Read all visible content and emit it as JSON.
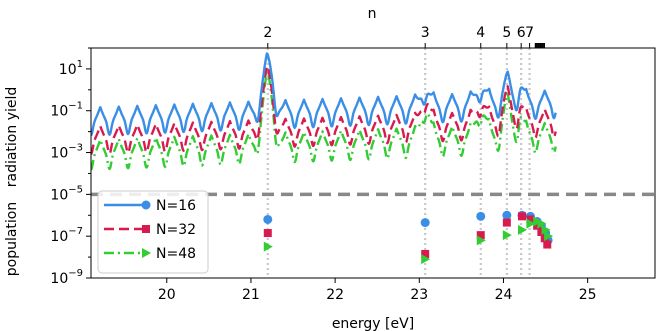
{
  "chart_data": {
    "type": "line",
    "xlabel": "energy [eV]",
    "top_xlabel": "n",
    "ylabel_upper": "radiation yield",
    "ylabel_lower": "population",
    "xlim": [
      19.1,
      25.8
    ],
    "ylim_log10": [
      -9,
      2
    ],
    "y_scale": "log",
    "grid": false,
    "legend_position": "lower-left",
    "x_ticks": [
      20,
      21,
      22,
      23,
      24,
      25
    ],
    "y_ticks": [
      {
        "exp": 1,
        "label": "10",
        "sup": "1"
      },
      {
        "exp": -1,
        "label": "10",
        "sup": "−1"
      },
      {
        "exp": -3,
        "label": "10",
        "sup": "−3"
      },
      {
        "exp": -5,
        "label": "10",
        "sup": "−5"
      },
      {
        "exp": -7,
        "label": "10",
        "sup": "−7"
      },
      {
        "exp": -9,
        "label": "10",
        "sup": "−9"
      }
    ],
    "threshold_log10": -5,
    "threshold_color": "#888888",
    "resonances": [
      {
        "n": "2",
        "energy": 21.2
      },
      {
        "n": "3",
        "energy": 23.07
      },
      {
        "n": "4",
        "energy": 23.73
      },
      {
        "n": "5",
        "energy": 24.04
      },
      {
        "n": "6",
        "energy": 24.21
      },
      {
        "n": "7",
        "energy": 24.31
      }
    ],
    "series": [
      {
        "name": "N=16",
        "color": "#3a8ee6",
        "line_style": "solid",
        "marker": "circle",
        "yield_curve": {
          "base": -1.6,
          "ripple": 0.75,
          "period": 0.22,
          "peaks": [
            {
              "x": 21.2,
              "h": 2.3,
              "w": 0.09
            },
            {
              "x": 23.07,
              "h": 0.9,
              "w": 0.07
            },
            {
              "x": 23.73,
              "h": 0.9,
              "w": 0.08
            },
            {
              "x": 24.04,
              "h": 1.0,
              "w": 0.07
            },
            {
              "x": 24.2,
              "h": 0.8,
              "w": 0.05
            }
          ]
        },
        "populations": [
          {
            "x": 21.2,
            "log10": -6.2
          },
          {
            "x": 23.07,
            "log10": -6.35
          },
          {
            "x": 23.73,
            "log10": -6.05
          },
          {
            "x": 24.04,
            "log10": -6.0
          },
          {
            "x": 24.22,
            "log10": -6.0
          },
          {
            "x": 24.32,
            "log10": -6.05
          },
          {
            "x": 24.4,
            "log10": -6.3
          },
          {
            "x": 24.45,
            "log10": -6.5
          },
          {
            "x": 24.5,
            "log10": -6.85
          },
          {
            "x": 24.53,
            "log10": -7.2
          }
        ]
      },
      {
        "name": "N=32",
        "color": "#d81b4f",
        "line_style": "dash",
        "marker": "square",
        "yield_curve": {
          "base": -2.5,
          "ripple": 0.75,
          "period": 0.22,
          "peaks": [
            {
              "x": 21.2,
              "h": 2.6,
              "w": 0.09
            },
            {
              "x": 23.07,
              "h": 1.4,
              "w": 0.07
            },
            {
              "x": 23.73,
              "h": 1.1,
              "w": 0.08
            },
            {
              "x": 24.04,
              "h": 1.2,
              "w": 0.07
            },
            {
              "x": 24.2,
              "h": 0.8,
              "w": 0.05
            }
          ]
        },
        "populations": [
          {
            "x": 21.2,
            "log10": -6.85
          },
          {
            "x": 23.07,
            "log10": -7.85
          },
          {
            "x": 23.73,
            "log10": -6.95
          },
          {
            "x": 24.04,
            "log10": -6.35
          },
          {
            "x": 24.22,
            "log10": -6.05
          },
          {
            "x": 24.32,
            "log10": -6.2
          },
          {
            "x": 24.4,
            "log10": -6.5
          },
          {
            "x": 24.45,
            "log10": -6.8
          },
          {
            "x": 24.49,
            "log10": -7.1
          },
          {
            "x": 24.52,
            "log10": -7.4
          }
        ]
      },
      {
        "name": "N=48",
        "color": "#33cc33",
        "line_style": "dashdot",
        "marker": "triangle-right",
        "yield_curve": {
          "base": -3.2,
          "ripple": 0.8,
          "period": 0.22,
          "peaks": [
            {
              "x": 21.2,
              "h": 3.0,
              "w": 0.09
            },
            {
              "x": 23.07,
              "h": 1.7,
              "w": 0.07
            },
            {
              "x": 23.73,
              "h": 1.4,
              "w": 0.08
            },
            {
              "x": 24.04,
              "h": 1.5,
              "w": 0.07
            },
            {
              "x": 24.2,
              "h": 1.0,
              "w": 0.05
            }
          ]
        },
        "populations": [
          {
            "x": 21.2,
            "log10": -7.5
          },
          {
            "x": 23.07,
            "log10": -8.1
          },
          {
            "x": 23.73,
            "log10": -7.2
          },
          {
            "x": 24.04,
            "log10": -6.95
          },
          {
            "x": 24.22,
            "log10": -6.7
          },
          {
            "x": 24.32,
            "log10": -6.4
          },
          {
            "x": 24.4,
            "log10": -6.3
          },
          {
            "x": 24.45,
            "log10": -6.4
          },
          {
            "x": 24.5,
            "log10": -6.7
          },
          {
            "x": 24.53,
            "log10": -7.0
          }
        ]
      }
    ]
  }
}
